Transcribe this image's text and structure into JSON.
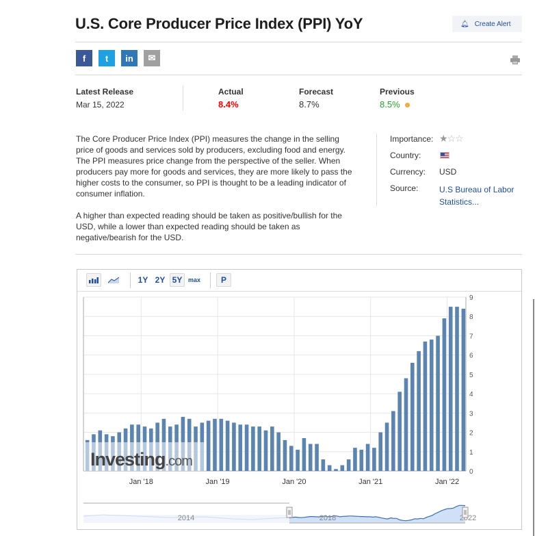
{
  "header": {
    "title": "U.S. Core Producer Price Index (PPI) YoY",
    "create_alert_label": "Create Alert",
    "bell_icon": "bell-icon",
    "print_icon": "printer-icon"
  },
  "share": [
    {
      "label": "f",
      "name": "facebook",
      "color": "#3b5998"
    },
    {
      "label": "t",
      "name": "twitter",
      "color": "#1da1e2"
    },
    {
      "label": "in",
      "name": "linkedin",
      "color": "#2f77b5"
    },
    {
      "label": "✉",
      "name": "email",
      "color": "#a0a0a0"
    }
  ],
  "release": {
    "latest_label": "Latest Release",
    "latest_date": "Mar 15, 2022",
    "actual_label": "Actual",
    "actual_value": "8.4%",
    "actual_color": "#ff0000",
    "forecast_label": "Forecast",
    "forecast_value": "8.7%",
    "previous_label": "Previous",
    "previous_value": "8.5%",
    "previous_color": "#27a32c",
    "previous_dot_color": "#f0ad3c"
  },
  "description": [
    "The Core Producer Price Index (PPI) measures the change in the selling price of goods and services sold by producers, excluding food and energy. The PPI measures price change from the perspective of the seller. When producers pay more for goods and services, they are more likely to pass the higher costs to the consumer, so PPI is thought to be a leading indicator of consumer inflation.",
    "A higher than expected reading should be taken as positive/bullish for the USD, while a lower than expected reading should be taken as negative/bearish for the USD."
  ],
  "details": {
    "importance_label": "Importance:",
    "importance_stars": 1,
    "importance_max": 3,
    "country_label": "Country:",
    "country_flag": "us-flag-icon",
    "currency_label": "Currency:",
    "currency_value": "USD",
    "source_label": "Source:",
    "source_value": "U.S Bureau of Labor Statistics..."
  },
  "toolbar": {
    "bar_icon": "bar-chart-icon",
    "area_icon": "area-chart-icon",
    "ranges": [
      "1Y",
      "2Y",
      "5Y",
      "max"
    ],
    "selected_range": "5Y",
    "p_label": "P"
  },
  "watermark": "Investing.com",
  "chart_data": {
    "type": "bar",
    "ylim": [
      0,
      9
    ],
    "yticks": [
      0,
      1,
      2,
      3,
      4,
      5,
      6,
      7,
      8,
      9
    ],
    "grid": true,
    "xtick_labels": [
      "Jan '18",
      "Jan '19",
      "Jan '20",
      "Jan '21",
      "Jan '22"
    ],
    "xtick_index": [
      9,
      21,
      33,
      45,
      57
    ],
    "values": [
      1.6,
      1.9,
      2.1,
      1.9,
      1.8,
      2.0,
      2.2,
      2.4,
      2.4,
      2.3,
      2.2,
      2.5,
      2.7,
      2.3,
      2.4,
      2.8,
      2.7,
      2.3,
      2.5,
      2.6,
      2.7,
      2.7,
      2.6,
      2.5,
      2.4,
      2.4,
      2.3,
      2.3,
      2.1,
      2.3,
      2.0,
      1.6,
      1.3,
      1.1,
      1.7,
      1.4,
      1.4,
      0.6,
      0.3,
      0.1,
      0.3,
      0.6,
      1.2,
      1.1,
      1.4,
      1.2,
      2.0,
      2.5,
      3.1,
      4.1,
      4.8,
      5.6,
      6.2,
      6.7,
      6.8,
      7.0,
      7.9,
      8.5,
      8.5,
      8.4
    ],
    "bar_color": "#5b84b1",
    "navigator_labels": [
      "2014",
      "2018",
      "2022"
    ]
  }
}
